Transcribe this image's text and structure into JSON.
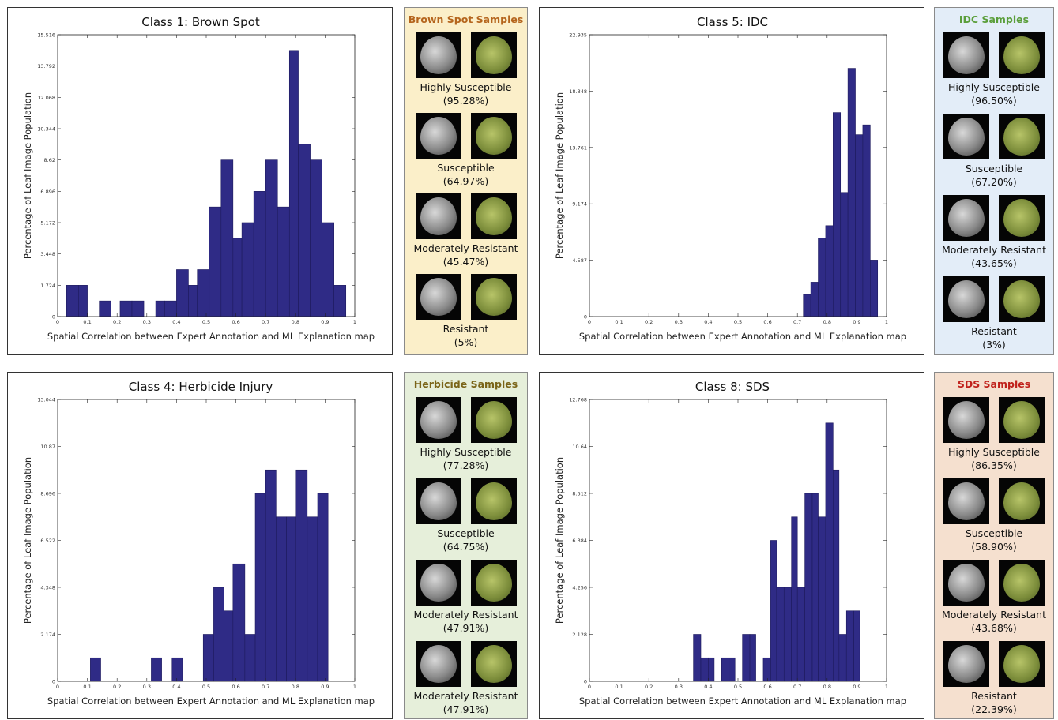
{
  "chart_data": [
    {
      "type": "bar",
      "title": "Class 1: Brown Spot",
      "xlabel": "Spatial Correlation between Expert Annotation and ML Explanation map",
      "ylabel": "Percentage of Leaf Image Population",
      "xlim": [
        0,
        1
      ],
      "ylim": [
        0,
        15.516
      ],
      "xticks": [
        "0",
        "0.1",
        "0.2",
        "0.3",
        "0.4",
        "0.5",
        "0.6",
        "0.7",
        "0.8",
        "0.9",
        "1"
      ],
      "yticks": [
        "0",
        "1.724",
        "3.448",
        "5.172",
        "6.896",
        "8.62",
        "10.344",
        "12.068",
        "13.792",
        "15.516"
      ],
      "bin_edges": [
        0.03,
        0.07,
        0.1,
        0.14,
        0.18,
        0.21,
        0.25,
        0.29,
        0.33,
        0.36,
        0.4,
        0.44,
        0.47,
        0.51,
        0.55,
        0.59,
        0.62,
        0.66,
        0.7,
        0.74,
        0.78,
        0.81,
        0.85,
        0.89,
        0.93,
        0.97
      ],
      "values": [
        1.724,
        1.724,
        0.0,
        0.862,
        0.0,
        0.862,
        0.862,
        0.0,
        0.862,
        0.862,
        2.586,
        1.724,
        2.586,
        6.034,
        8.62,
        4.31,
        5.172,
        6.896,
        8.62,
        6.034,
        14.654,
        9.482,
        8.62,
        5.172,
        1.724
      ]
    },
    {
      "type": "bar",
      "title": "Class 5: IDC",
      "xlabel": "Spatial Correlation between Expert Annotation and ML Explanation map",
      "ylabel": "Percentage of Leaf Image Population",
      "xlim": [
        0,
        1
      ],
      "ylim": [
        0,
        22.935
      ],
      "xticks": [
        "0",
        "0.1",
        "0.2",
        "0.3",
        "0.4",
        "0.5",
        "0.6",
        "0.7",
        "0.8",
        "0.9",
        "1"
      ],
      "yticks": [
        "0",
        "4.587",
        "9.174",
        "13.761",
        "18.348",
        "22.935"
      ],
      "bin_edges": [
        0.72,
        0.745,
        0.77,
        0.795,
        0.82,
        0.845,
        0.87,
        0.895,
        0.92,
        0.945,
        0.97,
        0.995
      ],
      "values": [
        1.8,
        2.8,
        6.4,
        7.4,
        16.6,
        10.1,
        20.2,
        14.8,
        15.6,
        4.6,
        0
      ]
    },
    {
      "type": "bar",
      "title": "Class 4: Herbicide Injury",
      "xlabel": "Spatial Correlation between Expert Annotation and ML Explanation map",
      "ylabel": "Percentage of Leaf Image Population",
      "xlim": [
        0,
        1
      ],
      "ylim": [
        0,
        13.044
      ],
      "xticks": [
        "0",
        "0.1",
        "0.2",
        "0.3",
        "0.4",
        "0.5",
        "0.6",
        "0.7",
        "0.8",
        "0.9",
        "1"
      ],
      "yticks": [
        "0",
        "2.174",
        "4.348",
        "6.522",
        "8.696",
        "10.87",
        "13.044"
      ],
      "bin_edges": [
        0.11,
        0.145,
        0.18,
        0.215,
        0.25,
        0.285,
        0.315,
        0.35,
        0.385,
        0.42,
        0.455,
        0.49,
        0.525,
        0.56,
        0.59,
        0.63,
        0.665,
        0.7,
        0.735,
        0.77,
        0.8,
        0.84,
        0.875,
        0.91,
        0.945,
        0.98
      ],
      "values": [
        1.087,
        0,
        0,
        0,
        0,
        0,
        1.087,
        0,
        1.087,
        0,
        0,
        2.174,
        4.348,
        3.261,
        5.435,
        2.174,
        8.696,
        9.783,
        7.609,
        7.609,
        9.783,
        7.609,
        8.696,
        0,
        0
      ]
    },
    {
      "type": "bar",
      "title": "Class 8: SDS",
      "xlabel": "Spatial Correlation between Expert Annotation and ML Explanation map",
      "ylabel": "Percentage of Leaf Image Population",
      "xlim": [
        0,
        1
      ],
      "ylim": [
        0,
        12.768
      ],
      "xticks": [
        "0",
        "0.1",
        "0.2",
        "0.3",
        "0.4",
        "0.5",
        "0.6",
        "0.7",
        "0.8",
        "0.9",
        "1"
      ],
      "yticks": [
        "0",
        "2.128",
        "4.256",
        "6.384",
        "8.512",
        "10.64",
        "12.768"
      ],
      "bin_edges": [
        0.35,
        0.375,
        0.4,
        0.42,
        0.445,
        0.47,
        0.49,
        0.515,
        0.54,
        0.56,
        0.585,
        0.61,
        0.63,
        0.655,
        0.68,
        0.7,
        0.725,
        0.75,
        0.77,
        0.795,
        0.82,
        0.84,
        0.865,
        0.89,
        0.91,
        0.935
      ],
      "values": [
        2.128,
        1.064,
        1.064,
        0,
        1.064,
        1.064,
        0,
        2.128,
        2.128,
        0,
        1.064,
        6.384,
        4.256,
        4.256,
        7.448,
        4.256,
        8.512,
        8.512,
        7.448,
        11.702,
        9.576,
        2.128,
        3.192,
        3.192,
        0
      ]
    }
  ],
  "panels": [
    {
      "title": "Brown Spot Samples",
      "title_color": "#b5651d",
      "bg": "#fbefc9",
      "samples": [
        {
          "label": "Highly Susceptible",
          "pct": "(95.28%)"
        },
        {
          "label": "Susceptible",
          "pct": "(64.97%)"
        },
        {
          "label": "Moderately Resistant",
          "pct": "(45.47%)"
        },
        {
          "label": "Resistant",
          "pct": "(5%)"
        }
      ]
    },
    {
      "title": "IDC Samples",
      "title_color": "#5a9e3a",
      "bg": "#e3edf8",
      "samples": [
        {
          "label": "Highly Susceptible",
          "pct": "(96.50%)"
        },
        {
          "label": "Susceptible",
          "pct": "(67.20%)"
        },
        {
          "label": "Moderately Resistant",
          "pct": "(43.65%)"
        },
        {
          "label": "Resistant",
          "pct": "(3%)"
        }
      ]
    },
    {
      "title": "Herbicide Samples",
      "title_color": "#7a6418",
      "bg": "#e6efda",
      "samples": [
        {
          "label": "Highly Susceptible",
          "pct": "(77.28%)"
        },
        {
          "label": "Susceptible",
          "pct": "(64.75%)"
        },
        {
          "label": "Moderately Resistant",
          "pct": "(47.91%)"
        },
        {
          "label": "Moderately Resistant",
          "pct": "(47.91%)"
        }
      ]
    },
    {
      "title": "SDS Samples",
      "title_color": "#c0211b",
      "bg": "#f5e0cf",
      "samples": [
        {
          "label": "Highly Susceptible",
          "pct": "(86.35%)"
        },
        {
          "label": "Susceptible",
          "pct": "(58.90%)"
        },
        {
          "label": "Moderately Resistant",
          "pct": "(43.68%)"
        },
        {
          "label": "Resistant",
          "pct": "(22.39%)"
        }
      ]
    }
  ]
}
